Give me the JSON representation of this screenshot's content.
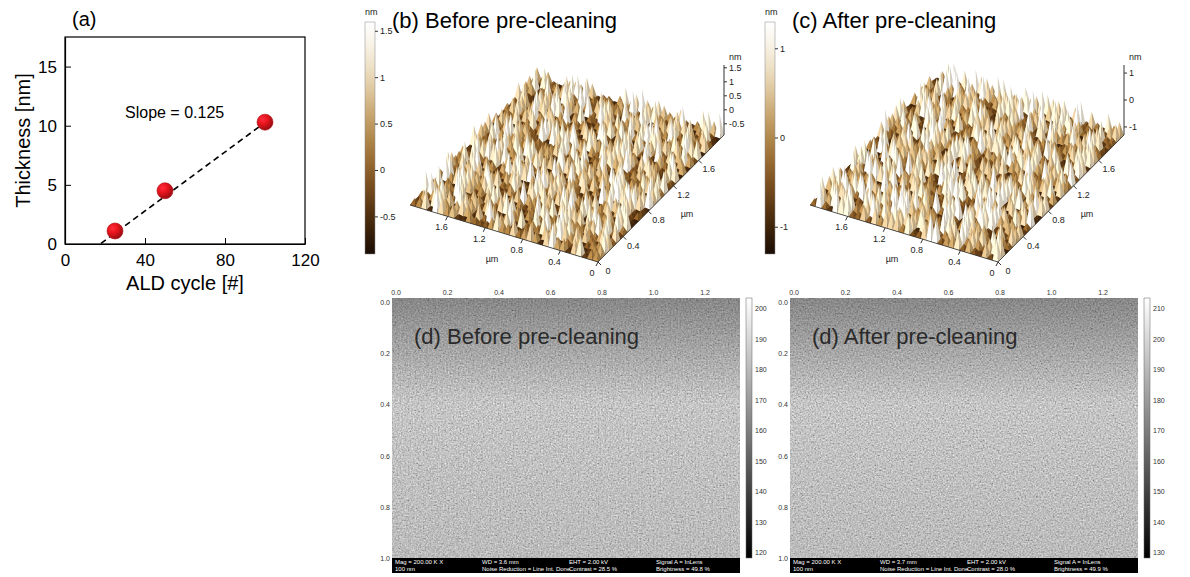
{
  "chart_data": {
    "type": "scatter",
    "title": "(a)",
    "x_label": "ALD cycle [#]",
    "y_label": "Thickness [nm]",
    "xlim": [
      0,
      120
    ],
    "xticks": [
      0,
      40,
      80,
      120
    ],
    "ylim": [
      0,
      17.5
    ],
    "yticks": [
      0,
      5,
      10,
      15
    ],
    "grid": false,
    "annotations": [
      "Slope = 0.125"
    ],
    "series": [
      {
        "type": "line",
        "color": "#000000",
        "line_style": "dashed",
        "x": [
          18,
          101
        ],
        "values": [
          0.05,
          10.4
        ]
      },
      {
        "type": "scatter",
        "color": "#e8141c",
        "marker": "sphere",
        "x": [
          25,
          50,
          100
        ],
        "values": [
          1.1,
          4.5,
          10.3
        ]
      }
    ]
  },
  "afm_images": [
    {
      "title": "(b) Before pre-cleaning",
      "unit": "nm",
      "lateral_unit": "µm",
      "lateral_range": [
        0,
        2
      ],
      "lateral_ticks": [
        0,
        0.4,
        0.8,
        1.2,
        1.6
      ],
      "z_range": [
        -0.9,
        1.6
      ],
      "z_ticks": [
        1.5,
        1,
        0.5,
        0,
        -0.5
      ]
    },
    {
      "title": "(c) After pre-cleaning",
      "unit": "nm",
      "lateral_unit": "µm",
      "lateral_range": [
        0,
        2
      ],
      "lateral_ticks": [
        0,
        0.4,
        0.8,
        1.2,
        1.6
      ],
      "z_range": [
        -1.3,
        1.3
      ],
      "z_ticks": [
        1,
        0,
        -1
      ]
    }
  ],
  "sem_images": [
    {
      "title": "(d) Before pre-cleaning",
      "top_ticks": [
        "0.0",
        "0.2",
        "0.4",
        "0.6",
        "0.8",
        "1.0",
        "1.2"
      ],
      "left_ticks": [
        "0.0",
        "0.2",
        "0.4",
        "0.6",
        "0.8",
        "1.0"
      ],
      "colorbar_ticks": [
        "120",
        "130",
        "140",
        "150",
        "160",
        "170",
        "180",
        "190",
        "200"
      ],
      "info": [
        "Mag = 200.00 K X",
        "WD = 3.6 mm",
        "EHT = 2.00 kV",
        "Signal A = InLens",
        "100 nm",
        "Noise Reduction = Line Int. Done",
        "Contrast = 28.5 %",
        "Brightness = 49.8 %"
      ]
    },
    {
      "title": "(d) After pre-cleaning",
      "top_ticks": [
        "0.0",
        "0.2",
        "0.4",
        "0.6",
        "0.8",
        "1.0",
        "1.2"
      ],
      "left_ticks": [
        "0.0",
        "0.2",
        "0.4",
        "0.6",
        "0.8",
        "1.0"
      ],
      "colorbar_ticks": [
        "130",
        "140",
        "150",
        "160",
        "170",
        "180",
        "190",
        "200",
        "210"
      ],
      "info": [
        "Mag = 200.00 K X",
        "WD = 3.7 mm",
        "EHT = 2.00 kV",
        "Signal A = InLens",
        "100 nm",
        "Noise Reduction = Line Int. Done",
        "Contrast = 28.0 %",
        "Brightness = 49.9 %"
      ]
    }
  ]
}
